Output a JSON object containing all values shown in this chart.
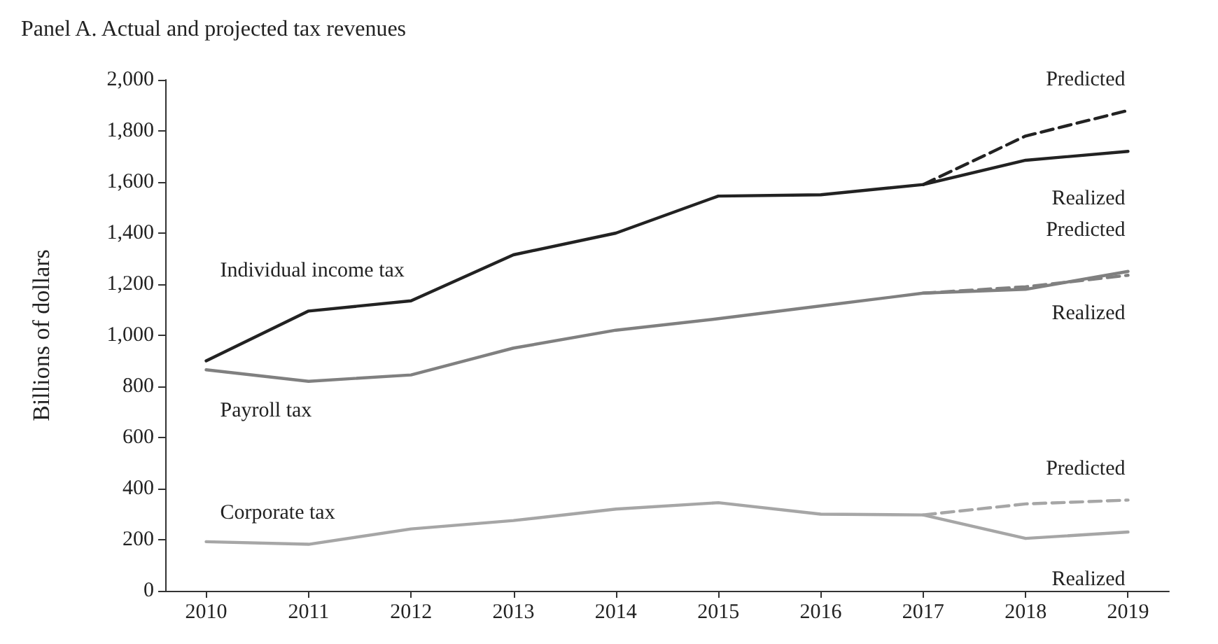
{
  "chart_data": {
    "type": "line",
    "title": "Panel A. Actual and projected tax revenues",
    "ylabel": "Billions of dollars",
    "x": [
      2010,
      2011,
      2012,
      2013,
      2014,
      2015,
      2016,
      2017,
      2018,
      2019
    ],
    "xlim": [
      2009.6,
      2019.4
    ],
    "xticks": [
      2010,
      2011,
      2012,
      2013,
      2014,
      2015,
      2016,
      2017,
      2018,
      2019
    ],
    "ylim": [
      0,
      2000
    ],
    "yticks": [
      0,
      200,
      400,
      600,
      800,
      {
        "value": 1000,
        "label": "1,000"
      },
      {
        "value": 1200,
        "label": "1,200"
      },
      {
        "value": 1400,
        "label": "1,400"
      },
      {
        "value": 1600,
        "label": "1,600"
      },
      {
        "value": 1800,
        "label": "1,800"
      },
      {
        "value": 2000,
        "label": "2,000"
      }
    ],
    "series": [
      {
        "name": "Individual income tax",
        "color": "#222222",
        "values": [
          900,
          1095,
          1135,
          1315,
          1400,
          1545,
          1550,
          1590,
          1685,
          1720
        ]
      },
      {
        "name": "Payroll tax",
        "color": "#808080",
        "values": [
          865,
          820,
          845,
          950,
          1020,
          1065,
          1115,
          1165,
          1180,
          1250
        ]
      },
      {
        "name": "Corporate tax",
        "color": "#a6a6a6",
        "values": [
          192,
          182,
          242,
          275,
          320,
          345,
          300,
          297,
          205,
          230
        ]
      },
      {
        "color": "#222222",
        "line_style": "dashed",
        "x": [
          2017,
          2018,
          2019
        ],
        "values": [
          1590,
          1780,
          1880
        ]
      },
      {
        "color": "#808080",
        "line_style": "dashed",
        "x": [
          2017,
          2018,
          2019
        ],
        "values": [
          1165,
          1190,
          1235
        ]
      },
      {
        "color": "#a6a6a6",
        "line_style": "dashed",
        "x": [
          2017,
          2018,
          2019
        ],
        "values": [
          297,
          340,
          355
        ]
      }
    ],
    "annotations": [
      "Predicted",
      "Realized",
      "Predicted",
      "Realized",
      "Predicted",
      "Realized"
    ],
    "grid": false,
    "legend": false,
    "marker": "none",
    "line_style": "solid"
  }
}
